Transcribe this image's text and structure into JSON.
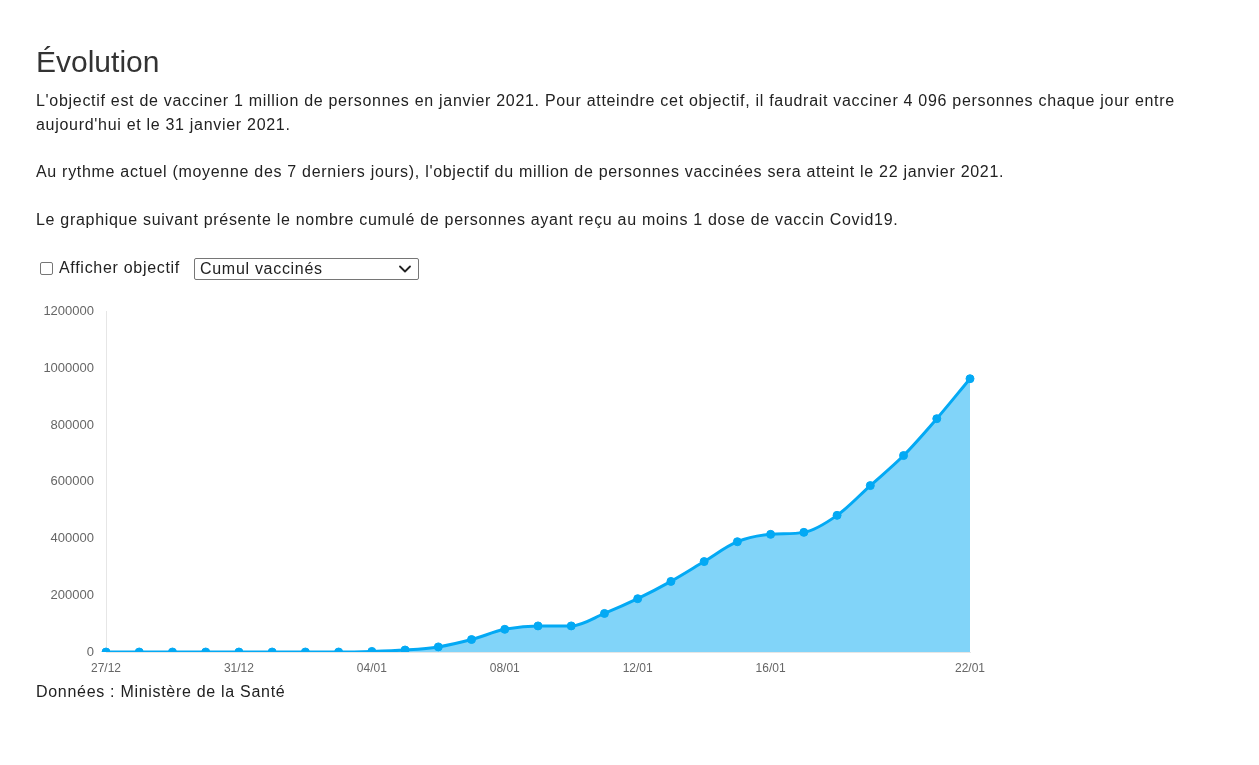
{
  "chart_data": {
    "type": "area",
    "title": "Évolution",
    "annotations": [
      "L'objectif est de vacciner 1 million de personnes en janvier 2021. Pour atteindre cet objectif, il faudrait vacciner 4 096 personnes chaque jour entre aujourd'hui et le 31 janvier 2021.",
      "Au rythme actuel (moyenne des 7 derniers jours), l'objectif du million de personnes vaccinées sera atteint le 22 janvier 2021.",
      "Le graphique suivant présente le nombre cumulé de personnes ayant reçu au moins 1 dose de vaccin Covid19.",
      "Afficher objectif",
      "Cumul vaccinés",
      "Données : Ministère de la Santé"
    ],
    "categories": [
      "27/12",
      null,
      null,
      null,
      "31/12",
      null,
      null,
      null,
      "04/01",
      null,
      null,
      null,
      "08/01",
      null,
      null,
      null,
      "12/01",
      null,
      null,
      null,
      "16/01",
      null,
      null,
      null,
      null,
      null,
      "22/01"
    ],
    "values": [
      0,
      0,
      0,
      0,
      0,
      0,
      0,
      0,
      2000,
      7000,
      18000,
      44000,
      80000,
      92000,
      92000,
      136000,
      188000,
      249000,
      319000,
      389000,
      415000,
      422000,
      482000,
      587000,
      693000,
      823000,
      964000
    ],
    "color": "#03a9f4",
    "ylim": [
      0,
      1200000
    ],
    "yticks": [
      0,
      200000,
      400000,
      600000,
      800000,
      1000000,
      1200000
    ],
    "grid": false,
    "legend": false,
    "marker": "circle",
    "line_style": "solid"
  }
}
